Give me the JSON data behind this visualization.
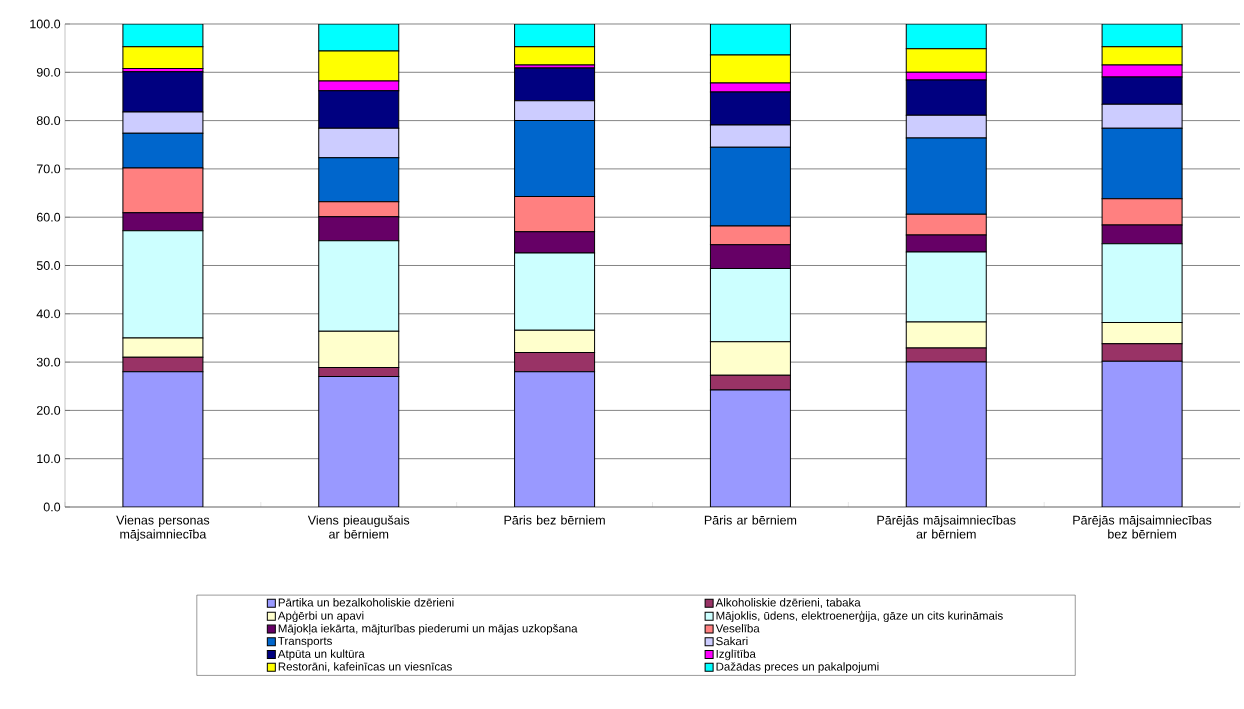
{
  "chart_data": {
    "type": "bar",
    "stacked": true,
    "categories": [
      "Vienas personas mājsaimniecība",
      "Viens pieaugušais ar bērniem",
      "Pāris bez bērniem",
      "Pāris ar bērniem",
      "Pārējās mājsaimniecības ar bērniem",
      "Pārējās mājsaimniecības bez bērniem"
    ],
    "series": [
      {
        "name": "Pārtika un bezalkoholiskie dzērieni",
        "color": "#9999ff",
        "values": [
          28.0,
          27.0,
          28.0,
          24.2,
          30.0,
          30.2
        ]
      },
      {
        "name": "Alkoholiskie dzērieni, tabaka",
        "color": "#993366",
        "values": [
          3.0,
          1.9,
          4.0,
          3.1,
          2.9,
          3.6
        ]
      },
      {
        "name": "Apģērbi un apavi",
        "color": "#ffffcc",
        "values": [
          4.0,
          7.5,
          4.6,
          6.9,
          5.4,
          4.4
        ]
      },
      {
        "name": "Mājoklis, ūdens, elektroenerģija, gāze un cits kurināmais",
        "color": "#ccffff",
        "values": [
          22.2,
          18.7,
          16.0,
          15.2,
          14.5,
          16.3
        ]
      },
      {
        "name": "Mājokļa iekārta, mājturības piederumi un mājas uzkopšana",
        "color": "#660066",
        "values": [
          3.7,
          5.0,
          4.4,
          4.9,
          3.5,
          3.9
        ]
      },
      {
        "name": "Veselība",
        "color": "#ff8080",
        "values": [
          9.3,
          3.1,
          7.3,
          3.9,
          4.3,
          5.4
        ]
      },
      {
        "name": "Transports",
        "color": "#0066cc",
        "values": [
          7.2,
          9.1,
          15.7,
          16.3,
          15.8,
          14.6
        ]
      },
      {
        "name": "Sakari",
        "color": "#ccccff",
        "values": [
          4.4,
          6.1,
          4.1,
          4.6,
          4.7,
          5.0
        ]
      },
      {
        "name": "Atpūta un kultūra",
        "color": "#000080",
        "values": [
          8.3,
          7.8,
          6.8,
          6.8,
          7.3,
          5.6
        ]
      },
      {
        "name": "Izglītība",
        "color": "#ff00ff",
        "values": [
          0.7,
          2.0,
          0.6,
          1.9,
          1.6,
          2.5
        ]
      },
      {
        "name": "Restorāni, kafeinīcas un viesnīcas",
        "color": "#ffff00",
        "values": [
          4.5,
          6.2,
          3.8,
          5.8,
          4.9,
          3.8
        ]
      },
      {
        "name": "Dažādas preces un pakalpojumi",
        "color": "#00ffff",
        "values": [
          4.7,
          5.6,
          4.7,
          6.4,
          5.1,
          4.7
        ]
      }
    ],
    "ylim": [
      0,
      100
    ],
    "yticks": [
      {
        "value": 0,
        "label": "0.0"
      },
      {
        "value": 10,
        "label": "10.0"
      },
      {
        "value": 20,
        "label": "20.0"
      },
      {
        "value": 30,
        "label": "30.0"
      },
      {
        "value": 40,
        "label": "40.0"
      },
      {
        "value": 50,
        "label": "50.0"
      },
      {
        "value": 60,
        "label": "60.0"
      },
      {
        "value": 70,
        "label": "70.0"
      },
      {
        "value": 80,
        "label": "80.0"
      },
      {
        "value": 90,
        "label": "90.0"
      },
      {
        "value": 100,
        "label": "100.0"
      }
    ],
    "grid": "y",
    "legend": "bottom"
  }
}
